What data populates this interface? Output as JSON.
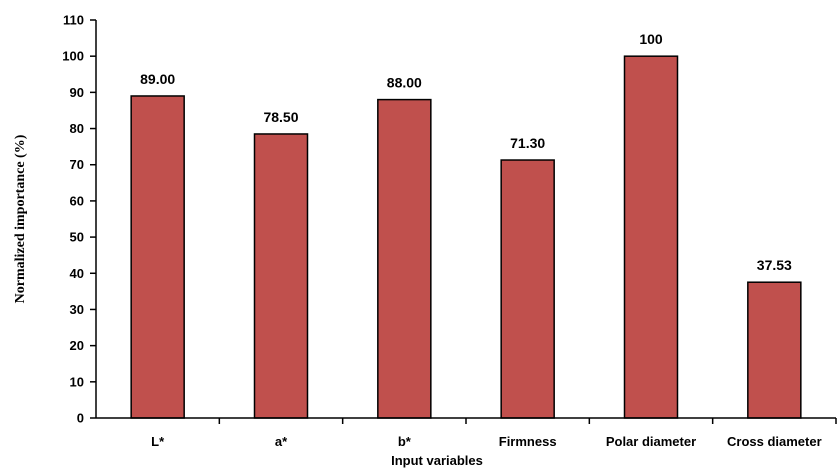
{
  "chart_data": {
    "type": "bar",
    "categories": [
      "L*",
      "a*",
      "b*",
      "Firmness",
      "Polar diameter",
      "Cross diameter"
    ],
    "values": [
      89.0,
      78.5,
      88.0,
      71.3,
      100,
      37.53
    ],
    "data_labels": [
      "89.00",
      "78.50",
      "88.00",
      "71.30",
      "100",
      "37.53"
    ],
    "xlabel": "Input variables",
    "ylabel": "Normalized  importance  (%)",
    "ylim": [
      0,
      110
    ],
    "yticks": [
      0,
      10,
      20,
      30,
      40,
      50,
      60,
      70,
      80,
      90,
      100,
      110
    ],
    "grid": false,
    "legend": "none",
    "bar_color": "#c0504d",
    "bar_edge_color": "#000000"
  }
}
